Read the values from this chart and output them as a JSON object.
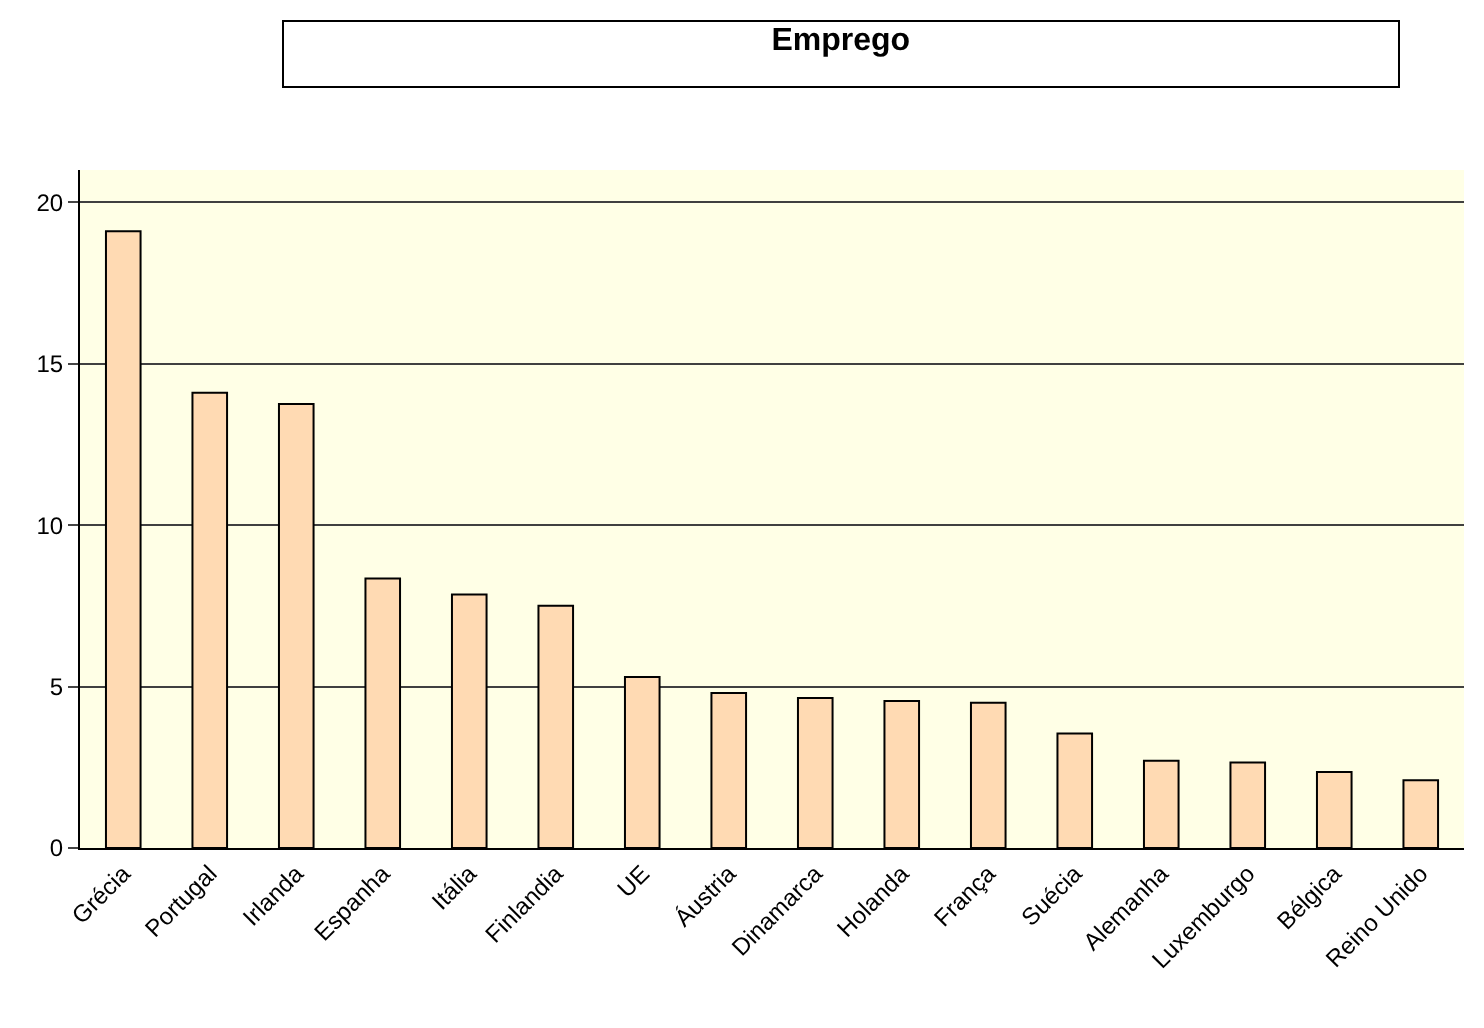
{
  "chart_data": {
    "type": "bar",
    "title": "Emprego",
    "categories": [
      "Grécia",
      "Portugal",
      "Irlanda",
      "Espanha",
      "Itália",
      "Finlandia",
      "UE",
      "Áustria",
      "Dinamarca",
      "Holanda",
      "França",
      "Suécia",
      "Alemanha",
      "Luxemburgo",
      "Bélgica",
      "Reino Unido"
    ],
    "values": [
      19.1,
      14.1,
      13.75,
      8.35,
      7.85,
      7.5,
      5.3,
      4.8,
      4.65,
      4.55,
      4.5,
      3.55,
      2.7,
      2.65,
      2.35,
      2.1
    ],
    "color": "#ffdab3",
    "ylim": [
      0,
      21
    ],
    "yticks": [
      0,
      5,
      10,
      15,
      20
    ],
    "grid": "y",
    "legend": false
  }
}
